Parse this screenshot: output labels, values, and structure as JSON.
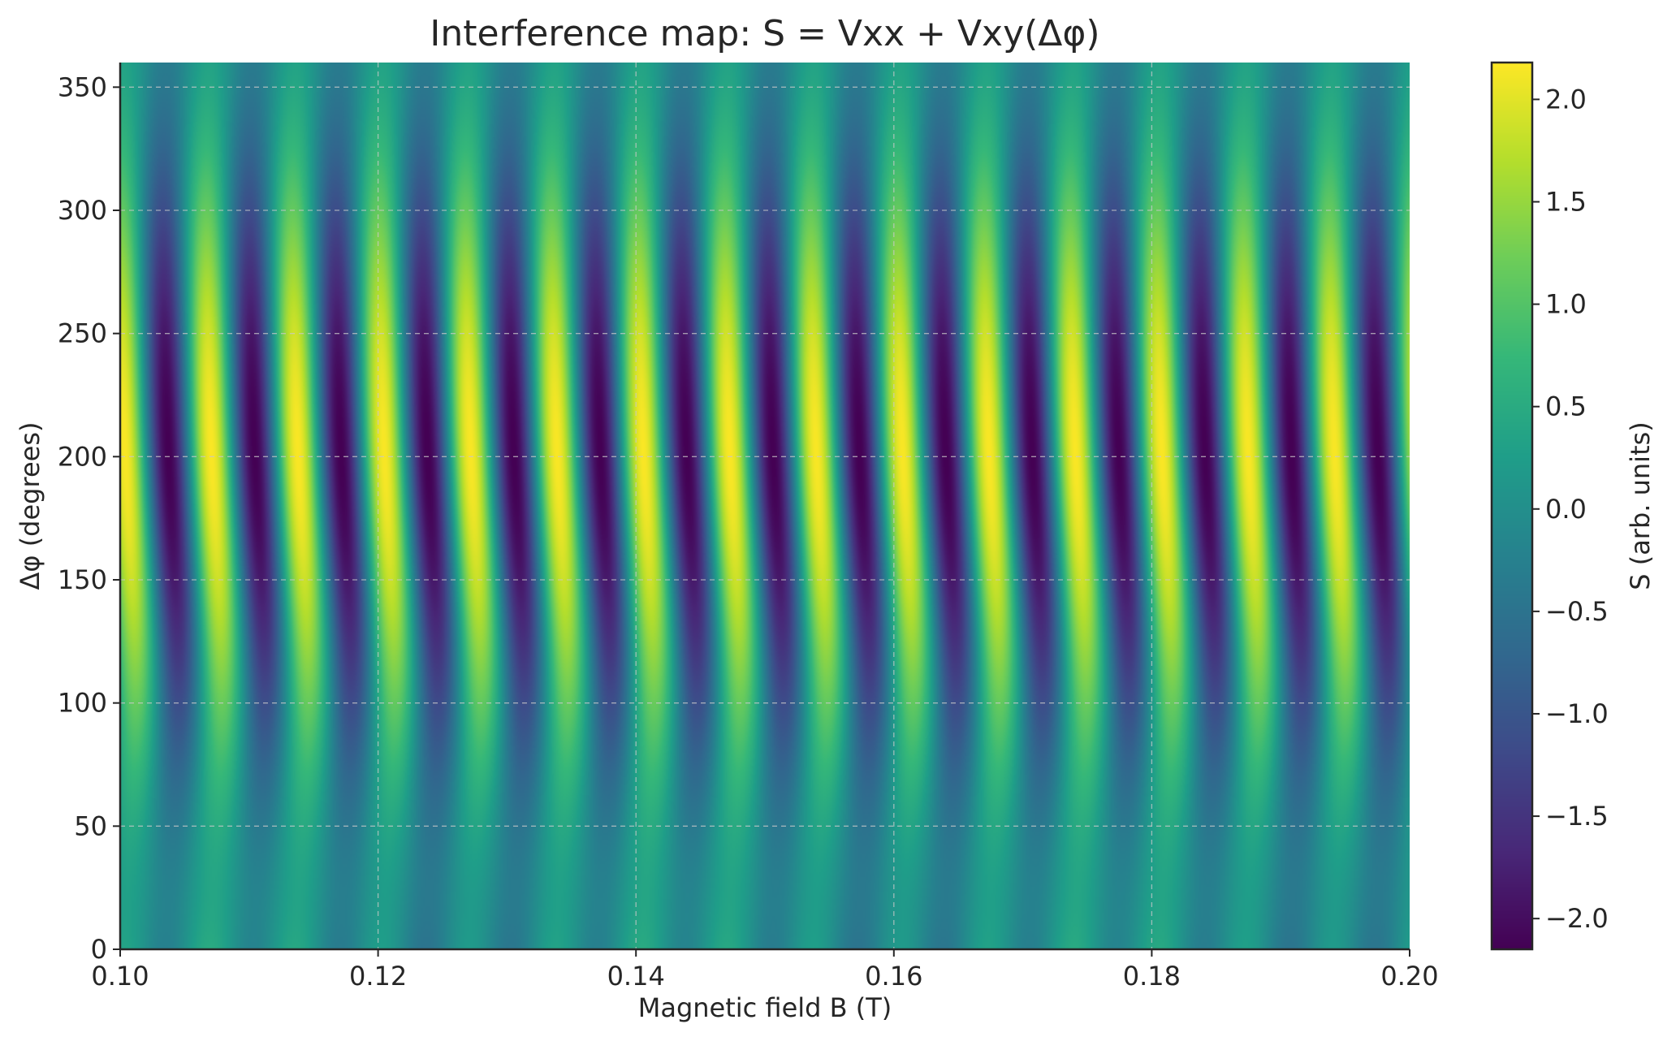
{
  "chart_data": {
    "type": "heatmap",
    "title": "Interference map: S = Vxx + Vxy(Δφ)",
    "xlabel": "Magnetic field B (T)",
    "ylabel": "Δφ (degrees)",
    "colorbar_label": "S (arb. units)",
    "colormap": "viridis",
    "x_range": [
      0.1,
      0.2
    ],
    "y_range": [
      0,
      360
    ],
    "z_range": [
      -2.15,
      2.18
    ],
    "x_ticks": [
      0.1,
      0.12,
      0.14,
      0.16,
      0.18,
      0.2
    ],
    "x_tick_labels": [
      "0.10",
      "0.12",
      "0.14",
      "0.16",
      "0.18",
      "0.20"
    ],
    "y_ticks": [
      0,
      50,
      100,
      150,
      200,
      250,
      300,
      350
    ],
    "y_tick_labels": [
      "0",
      "50",
      "100",
      "150",
      "200",
      "250",
      "300",
      "350"
    ],
    "colorbar_ticks": [
      2.0,
      1.5,
      1.0,
      0.5,
      0.0,
      -0.5,
      -1.0,
      -1.5,
      -2.0
    ],
    "colorbar_tick_labels": [
      "2.0",
      "1.5",
      "1.0",
      "0.5",
      "0.0",
      "−0.5",
      "−1.0",
      "−1.5",
      "−2.0"
    ],
    "grid": true,
    "grid_style": "dashed",
    "model": {
      "description_of_stripes": "periodic oscillation in B with a phase that drifts with Δφ; amplitude peaks near Δφ≈200° and is weakest near Δφ≈0–50°",
      "base_period_T": 0.0067,
      "bright_ridge_B_at_phi_200": [
        0.1005,
        0.1072,
        0.1139,
        0.1206,
        0.1273,
        0.134,
        0.1407,
        0.1474,
        0.1541,
        0.1608,
        0.1675,
        0.1742,
        0.1809,
        0.1876,
        0.1943
      ]
    }
  }
}
